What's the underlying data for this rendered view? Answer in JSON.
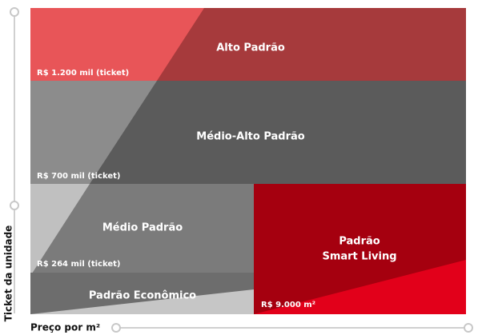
{
  "segments": [
    {
      "label": "Alto Padrão",
      "ticket": "R$ 1.200 mil (ticket)"
    },
    {
      "label": "Médio-Alto Padrão",
      "ticket": "R$ 700 mil (ticket)"
    },
    {
      "label": "Médio Padrão",
      "ticket": "R$ 264 mil (ticket)"
    },
    {
      "label": "Padrão Econômico"
    },
    {
      "label_lines": [
        "Padrão",
        "Smart Living"
      ],
      "price": "R$ 9.000 m²"
    }
  ],
  "axes": {
    "y_label": "Ticket da unidade",
    "x_label": "Preço por m²"
  }
}
